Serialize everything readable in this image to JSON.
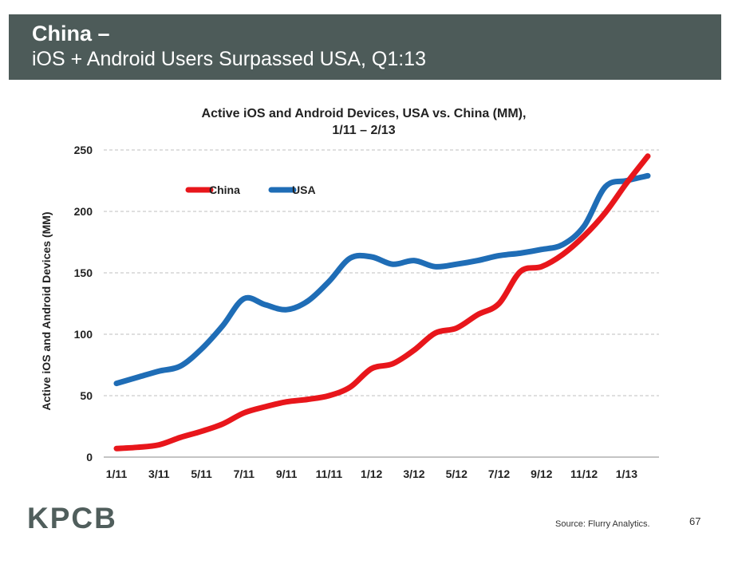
{
  "header": {
    "title": "China –",
    "subtitle": "iOS + Android Users Surpassed USA, Q1:13"
  },
  "footer": {
    "logo": "KPCB",
    "source": "Source: Flurry Analytics.",
    "page_number": "67"
  },
  "chart_data": {
    "type": "line",
    "title": "Active iOS and Android Devices, USA vs. China (MM),",
    "subtitle": "1/11 – 2/13",
    "xlabel": "",
    "ylabel": "Active iOS and Android Devices (MM)",
    "ylim": [
      0,
      250
    ],
    "yticks": [
      0,
      50,
      100,
      150,
      200,
      250
    ],
    "grid": true,
    "legend_position": "top-left",
    "x": [
      "1/11",
      "2/11",
      "3/11",
      "4/11",
      "5/11",
      "6/11",
      "7/11",
      "8/11",
      "9/11",
      "10/11",
      "11/11",
      "12/11",
      "1/12",
      "2/12",
      "3/12",
      "4/12",
      "5/12",
      "6/12",
      "7/12",
      "8/12",
      "9/12",
      "10/12",
      "11/12",
      "12/12",
      "1/13",
      "2/13"
    ],
    "xtick_labels": [
      "1/11",
      "3/11",
      "5/11",
      "7/11",
      "9/11",
      "11/11",
      "1/12",
      "3/12",
      "5/12",
      "7/12",
      "9/12",
      "11/12",
      "1/13"
    ],
    "series": [
      {
        "name": "China",
        "color": "#e8161b",
        "values": [
          7,
          8,
          10,
          16,
          21,
          27,
          36,
          41,
          45,
          47,
          50,
          57,
          72,
          76,
          87,
          101,
          105,
          116,
          125,
          151,
          155,
          165,
          180,
          199,
          223,
          245
        ]
      },
      {
        "name": "USA",
        "color": "#1f6db6",
        "values": [
          60,
          65,
          70,
          74,
          88,
          107,
          129,
          124,
          120,
          127,
          143,
          162,
          163,
          157,
          160,
          155,
          157,
          160,
          164,
          166,
          169,
          173,
          188,
          220,
          225,
          229
        ]
      }
    ]
  }
}
